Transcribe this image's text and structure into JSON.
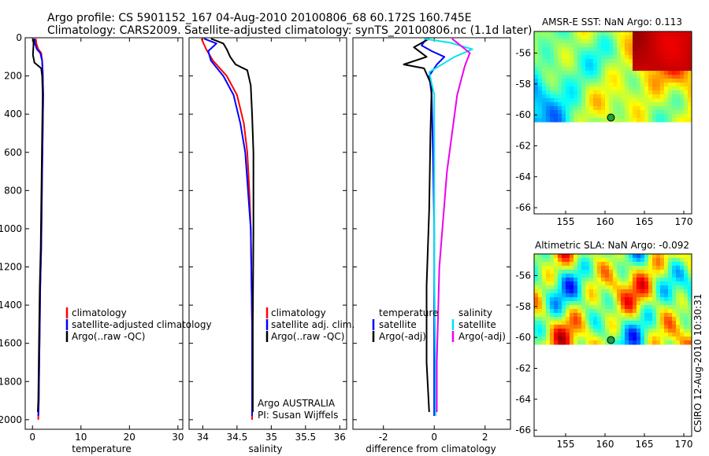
{
  "header": {
    "line1": "Argo profile: CS 5901152_167 04-Aug-2010 20100806_68 60.172S 160.745E",
    "line2": "Climatology: CARS2009. Satellite-adjusted climatology: synTS_20100806.nc (1.1d later)"
  },
  "footer": {
    "stamp": "CSIRO 12-Aug-2010 10:30:31",
    "credit1": "Argo AUSTRALIA",
    "credit2": "PI: Susan Wijffels"
  },
  "colors": {
    "climatology": "#ff0000",
    "satellite": "#0000ff",
    "argo": "#000000",
    "satellite_salinity": "#00e5ee",
    "argo_salinity_adj": "#ee00ee",
    "float_marker": "#20a040"
  },
  "chart_data": [
    {
      "type": "line",
      "id": "temperature",
      "xlabel": "temperature",
      "ylabel": "",
      "xlim": [
        -1.5,
        31
      ],
      "ylim": [
        2050,
        0
      ],
      "xticks": [
        "0",
        "10",
        "20",
        "30"
      ],
      "yticks": [
        "0",
        "200",
        "400",
        "600",
        "800",
        "1000",
        "1200",
        "1400",
        "1600",
        "1800",
        "2000"
      ],
      "legend": [
        "climatology",
        "satellite-adjusted climatology",
        "Argo(..raw -QC)"
      ],
      "legend_position": "lower-left",
      "series": [
        {
          "name": "climatology",
          "color": "#ff0000",
          "points": [
            [
              0.7,
              5
            ],
            [
              0.8,
              30
            ],
            [
              1.2,
              60
            ],
            [
              1.8,
              80
            ],
            [
              2.0,
              120
            ],
            [
              2.1,
              180
            ],
            [
              2.2,
              300
            ],
            [
              2.1,
              500
            ],
            [
              2.0,
              700
            ],
            [
              1.9,
              900
            ],
            [
              1.8,
              1100
            ],
            [
              1.6,
              1300
            ],
            [
              1.5,
              1500
            ],
            [
              1.4,
              1700
            ],
            [
              1.3,
              1900
            ],
            [
              1.2,
              2000
            ]
          ]
        },
        {
          "name": "satellite-adjusted climatology",
          "color": "#0000ff",
          "points": [
            [
              0.4,
              5
            ],
            [
              0.5,
              30
            ],
            [
              0.9,
              60
            ],
            [
              1.6,
              80
            ],
            [
              2.0,
              120
            ],
            [
              2.1,
              180
            ],
            [
              2.2,
              300
            ],
            [
              2.1,
              500
            ],
            [
              2.0,
              700
            ],
            [
              1.9,
              900
            ],
            [
              1.8,
              1100
            ],
            [
              1.6,
              1300
            ],
            [
              1.5,
              1500
            ],
            [
              1.4,
              1700
            ],
            [
              1.3,
              1900
            ],
            [
              1.2,
              1980
            ]
          ]
        },
        {
          "name": "Argo(..raw -QC)",
          "color": "#000000",
          "points": [
            [
              0.2,
              5
            ],
            [
              0.2,
              40
            ],
            [
              0.1,
              90
            ],
            [
              0.4,
              130
            ],
            [
              1.8,
              160
            ],
            [
              2.0,
              200
            ],
            [
              2.1,
              300
            ],
            [
              2.0,
              500
            ],
            [
              1.9,
              700
            ],
            [
              1.8,
              900
            ],
            [
              1.7,
              1100
            ],
            [
              1.5,
              1300
            ],
            [
              1.4,
              1500
            ],
            [
              1.3,
              1700
            ],
            [
              1.2,
              1900
            ],
            [
              1.1,
              1960
            ]
          ]
        }
      ]
    },
    {
      "type": "line",
      "id": "salinity",
      "xlabel": "salinity",
      "ylabel": "",
      "xlim": [
        33.8,
        36.1
      ],
      "ylim": [
        2050,
        0
      ],
      "xticks": [
        "34",
        "34.5",
        "35",
        "35.5",
        "36"
      ],
      "legend": [
        "climatology",
        "satellite adj. clim.",
        "Argo(..raw -QC)"
      ],
      "legend_position": "lower-left",
      "series": [
        {
          "name": "climatology",
          "color": "#ff0000",
          "points": [
            [
              33.98,
              5
            ],
            [
              34.05,
              60
            ],
            [
              34.15,
              120
            ],
            [
              34.35,
              200
            ],
            [
              34.5,
              300
            ],
            [
              34.6,
              450
            ],
            [
              34.65,
              600
            ],
            [
              34.68,
              800
            ],
            [
              34.7,
              1000
            ],
            [
              34.72,
              1500
            ],
            [
              34.72,
              2000
            ]
          ]
        },
        {
          "name": "satellite adj. clim.",
          "color": "#0000ff",
          "points": [
            [
              34.02,
              5
            ],
            [
              34.2,
              30
            ],
            [
              34.08,
              70
            ],
            [
              34.12,
              120
            ],
            [
              34.3,
              200
            ],
            [
              34.45,
              300
            ],
            [
              34.55,
              450
            ],
            [
              34.62,
              600
            ],
            [
              34.66,
              800
            ],
            [
              34.7,
              1000
            ],
            [
              34.72,
              1500
            ],
            [
              34.72,
              1980
            ]
          ]
        },
        {
          "name": "Argo(..raw -QC)",
          "color": "#000000",
          "points": [
            [
              34.12,
              5
            ],
            [
              34.3,
              30
            ],
            [
              34.35,
              60
            ],
            [
              34.4,
              100
            ],
            [
              34.48,
              140
            ],
            [
              34.65,
              170
            ],
            [
              34.7,
              250
            ],
            [
              34.72,
              400
            ],
            [
              34.74,
              600
            ],
            [
              34.74,
              1000
            ],
            [
              34.73,
              1500
            ],
            [
              34.73,
              1960
            ]
          ]
        }
      ]
    },
    {
      "type": "line",
      "id": "difference",
      "xlabel": "difference from climatology",
      "ylabel": "",
      "xlim": [
        -3.2,
        3.0
      ],
      "ylim": [
        2050,
        0
      ],
      "xticks": [
        "-2",
        "0",
        "2"
      ],
      "legend_temperature": [
        "temperature",
        "satellite",
        "Argo(-adj)"
      ],
      "legend_salinity": [
        "salinity",
        "satellite",
        "Argo(-adj)"
      ],
      "legend_position": "lower-center",
      "series": [
        {
          "name": "temperature satellite",
          "color": "#0000ff",
          "points": [
            [
              -0.3,
              5
            ],
            [
              -0.5,
              40
            ],
            [
              -0.1,
              70
            ],
            [
              0.4,
              100
            ],
            [
              0.1,
              140
            ],
            [
              -0.2,
              200
            ],
            [
              -0.1,
              300
            ],
            [
              -0.05,
              600
            ],
            [
              0,
              1000
            ],
            [
              0,
              1500
            ],
            [
              0,
              1980
            ]
          ]
        },
        {
          "name": "temperature Argo(-adj)",
          "color": "#000000",
          "points": [
            [
              -0.2,
              5
            ],
            [
              -0.8,
              50
            ],
            [
              -0.3,
              100
            ],
            [
              -1.2,
              140
            ],
            [
              -0.4,
              160
            ],
            [
              -0.1,
              250
            ],
            [
              -0.15,
              500
            ],
            [
              -0.2,
              900
            ],
            [
              -0.3,
              1300
            ],
            [
              -0.3,
              1700
            ],
            [
              -0.2,
              1960
            ]
          ]
        },
        {
          "name": "salinity satellite",
          "color": "#00e5ee",
          "points": [
            [
              -0.4,
              5
            ],
            [
              0.6,
              25
            ],
            [
              1.5,
              60
            ],
            [
              0.8,
              100
            ],
            [
              -0.2,
              180
            ],
            [
              0,
              300
            ],
            [
              0,
              700
            ],
            [
              0,
              1200
            ],
            [
              0.05,
              1700
            ],
            [
              0.05,
              1980
            ]
          ]
        },
        {
          "name": "salinity Argo(-adj)",
          "color": "#ee00ee",
          "points": [
            [
              0.7,
              5
            ],
            [
              1.4,
              80
            ],
            [
              1.2,
              150
            ],
            [
              0.9,
              300
            ],
            [
              0.5,
              700
            ],
            [
              0.2,
              1200
            ],
            [
              0.1,
              1700
            ],
            [
              0.1,
              1960
            ]
          ]
        }
      ]
    },
    {
      "type": "heatmap",
      "id": "sst-map",
      "title": "AMSR-E SST: NaN Argo: 0.113",
      "xlim": [
        151,
        171
      ],
      "ylim": [
        -66.4,
        -54.6
      ],
      "xticks": [
        "155",
        "160",
        "165",
        "170"
      ],
      "yticks": [
        "-56",
        "-58",
        "-60",
        "-62",
        "-64",
        "-66"
      ],
      "float_position": [
        160.745,
        -60.172
      ]
    },
    {
      "type": "heatmap",
      "id": "sla-map",
      "title": "Altimetric SLA: NaN Argo: -0.092",
      "xlim": [
        151,
        171
      ],
      "ylim": [
        -66.4,
        -54.6
      ],
      "xticks": [
        "155",
        "160",
        "165",
        "170"
      ],
      "yticks": [
        "-56",
        "-58",
        "-60",
        "-62",
        "-64",
        "-66"
      ],
      "float_position": [
        160.745,
        -60.172
      ]
    }
  ]
}
